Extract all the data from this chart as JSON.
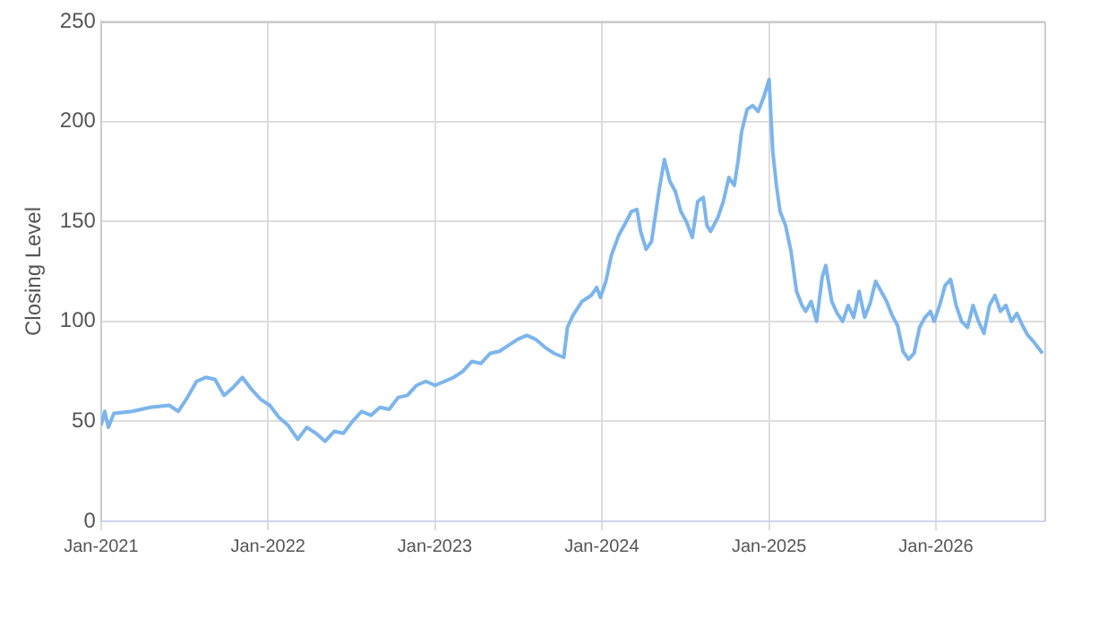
{
  "chart_data": {
    "type": "line",
    "ylabel": "Closing Level",
    "xlim": [
      "2021-01-01",
      "2026-08-26"
    ],
    "xticks": [
      {
        "value": "2021-01-01",
        "label": "Jan-2021"
      },
      {
        "value": "2022-01-01",
        "label": "Jan-2022"
      },
      {
        "value": "2023-01-01",
        "label": "Jan-2023"
      },
      {
        "value": "2024-01-01",
        "label": "Jan-2024"
      },
      {
        "value": "2025-01-01",
        "label": "Jan-2025"
      },
      {
        "value": "2026-01-01",
        "label": "Jan-2026"
      }
    ],
    "ylim": [
      0,
      250
    ],
    "yticks": [
      0,
      50,
      100,
      150,
      200,
      250
    ],
    "grid": true,
    "legend": false,
    "marker": "none",
    "line_style": "solid",
    "x": [
      "2021-01-01",
      "2021-01-09",
      "2021-01-17",
      "2021-01-29",
      "2021-03-10",
      "2021-04-19",
      "2021-05-30",
      "2021-06-19",
      "2021-07-09",
      "2021-07-29",
      "2021-08-18",
      "2021-09-07",
      "2021-09-27",
      "2021-10-17",
      "2021-11-06",
      "2021-11-26",
      "2021-12-16",
      "2022-01-05",
      "2022-01-25",
      "2022-02-14",
      "2022-03-07",
      "2022-03-27",
      "2022-04-16",
      "2022-05-06",
      "2022-05-26",
      "2022-06-15",
      "2022-07-05",
      "2022-07-25",
      "2022-08-14",
      "2022-09-03",
      "2022-09-23",
      "2022-10-13",
      "2022-11-02",
      "2022-11-22",
      "2022-12-12",
      "2023-01-02",
      "2023-01-22",
      "2023-02-11",
      "2023-03-03",
      "2023-03-23",
      "2023-04-12",
      "2023-05-02",
      "2023-05-22",
      "2023-06-11",
      "2023-07-01",
      "2023-07-21",
      "2023-08-10",
      "2023-08-30",
      "2023-09-19",
      "2023-10-10",
      "2023-10-18",
      "2023-10-30",
      "2023-11-19",
      "2023-12-09",
      "2023-12-21",
      "2023-12-29",
      "2024-01-10",
      "2024-01-22",
      "2024-02-07",
      "2024-02-19",
      "2024-03-06",
      "2024-03-18",
      "2024-03-26",
      "2024-04-07",
      "2024-04-19",
      "2024-05-05",
      "2024-05-17",
      "2024-05-29",
      "2024-06-10",
      "2024-06-22",
      "2024-07-04",
      "2024-07-17",
      "2024-07-29",
      "2024-08-10",
      "2024-08-18",
      "2024-08-26",
      "2024-09-11",
      "2024-09-23",
      "2024-10-05",
      "2024-10-17",
      "2024-10-25",
      "2024-11-02",
      "2024-11-14",
      "2024-11-26",
      "2024-12-08",
      "2024-12-20",
      "2025-01-01",
      "2025-01-09",
      "2025-01-17",
      "2025-01-25",
      "2025-02-06",
      "2025-02-18",
      "2025-03-02",
      "2025-03-14",
      "2025-03-22",
      "2025-04-03",
      "2025-04-15",
      "2025-04-27",
      "2025-05-05",
      "2025-05-18",
      "2025-05-30",
      "2025-06-11",
      "2025-06-23",
      "2025-07-05",
      "2025-07-17",
      "2025-07-29",
      "2025-08-10",
      "2025-08-22",
      "2025-09-03",
      "2025-09-15",
      "2025-09-27",
      "2025-10-09",
      "2025-10-21",
      "2025-11-02",
      "2025-11-14",
      "2025-11-26",
      "2025-12-08",
      "2025-12-20",
      "2025-12-28",
      "2026-01-09",
      "2026-01-21",
      "2026-02-02",
      "2026-02-14",
      "2026-02-26",
      "2026-03-11",
      "2026-03-23",
      "2026-04-04",
      "2026-04-16",
      "2026-04-28",
      "2026-05-10",
      "2026-05-22",
      "2026-06-03",
      "2026-06-15",
      "2026-06-27",
      "2026-07-09",
      "2026-07-21",
      "2026-08-02",
      "2026-08-22"
    ],
    "series": [
      {
        "color": "#7cb5ec",
        "values": [
          48,
          55,
          47,
          54,
          55,
          57,
          58,
          55,
          62,
          70,
          72,
          71,
          63,
          67,
          72,
          66,
          61,
          58,
          52,
          48,
          41,
          47,
          44,
          40,
          45,
          44,
          50,
          55,
          53,
          57,
          56,
          62,
          63,
          68,
          70,
          68,
          70,
          72,
          75,
          80,
          79,
          84,
          85,
          88,
          91,
          93,
          91,
          87,
          84,
          82,
          97,
          103,
          110,
          113,
          117,
          112,
          120,
          133,
          143,
          148,
          155,
          156,
          145,
          136,
          140,
          165,
          181,
          170,
          165,
          155,
          150,
          142,
          160,
          162,
          148,
          145,
          152,
          160,
          172,
          168,
          180,
          195,
          206,
          208,
          205,
          212,
          221,
          185,
          168,
          155,
          148,
          135,
          115,
          108,
          105,
          110,
          100,
          122,
          128,
          110,
          104,
          100,
          108,
          102,
          115,
          102,
          109,
          120,
          115,
          110,
          103,
          98,
          85,
          81,
          84,
          97,
          102,
          105,
          100,
          108,
          118,
          121,
          108,
          100,
          97,
          108,
          100,
          94,
          108,
          113,
          105,
          108,
          100,
          104,
          98,
          93,
          90,
          84
        ]
      }
    ]
  }
}
